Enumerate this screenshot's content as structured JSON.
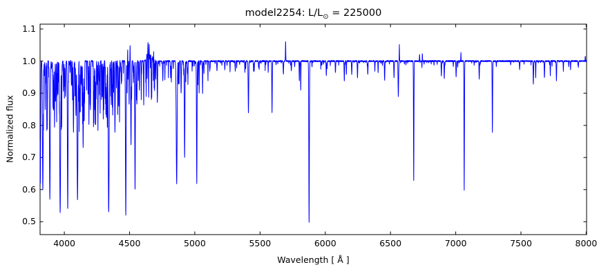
{
  "title": "model2254: L/L☉ = 225000",
  "title_parts": {
    "prefix": "model2254: L/L",
    "sub": "⊙",
    "suffix": " = 225000"
  },
  "chart_data": {
    "type": "line",
    "title": "model2254: L/L☉ = 225000",
    "xlabel": "Wavelength [ Å ]",
    "ylabel": "Normalized flux",
    "xlim": [
      3814,
      8003
    ],
    "ylim": [
      0.46,
      1.115
    ],
    "x_tick_values": [
      4000,
      4500,
      5000,
      5500,
      6000,
      6500,
      7000,
      7500,
      8000
    ],
    "x_tick_labels": [
      "4000",
      "4500",
      "5000",
      "5500",
      "6000",
      "6500",
      "7000",
      "7500",
      "8000"
    ],
    "y_tick_values": [
      0.5,
      0.6,
      0.7,
      0.8,
      0.9,
      1.0,
      1.1
    ],
    "y_tick_labels": [
      "0.5",
      "0.6",
      "0.7",
      "0.8",
      "0.9",
      "1.0",
      "1.1"
    ],
    "grid": false,
    "legend": false,
    "series_color": "#0000ff",
    "axis_color": "#000000",
    "background_color": "#ffffff",
    "continuum_flux": 1.0,
    "noise_amplitude": 0.0022,
    "random_seed": 7,
    "absorption_lines_format": [
      "wavelength_A",
      "min_flux",
      "width_A"
    ],
    "absorption_lines": [
      [
        3816,
        0.62,
        5
      ],
      [
        3835,
        0.6,
        7
      ],
      [
        3856,
        0.93,
        4
      ],
      [
        3868,
        0.9,
        4
      ],
      [
        3889,
        0.57,
        7
      ],
      [
        3920,
        0.93,
        4
      ],
      [
        3935,
        0.91,
        4
      ],
      [
        3968,
        0.53,
        8
      ],
      [
        3995,
        0.92,
        4
      ],
      [
        4009,
        0.89,
        4
      ],
      [
        4026,
        0.54,
        6
      ],
      [
        4070,
        0.78,
        5
      ],
      [
        4089,
        0.83,
        5
      ],
      [
        4101,
        0.57,
        8
      ],
      [
        4121,
        0.84,
        4
      ],
      [
        4144,
        0.73,
        5
      ],
      [
        4187,
        0.9,
        4
      ],
      [
        4200,
        0.85,
        4
      ],
      [
        4267,
        0.94,
        4
      ],
      [
        4291,
        0.89,
        4
      ],
      [
        4317,
        0.93,
        4
      ],
      [
        4340,
        0.53,
        8
      ],
      [
        4388,
        0.78,
        5
      ],
      [
        4415,
        0.91,
        4
      ],
      [
        4437,
        0.93,
        4
      ],
      [
        4471,
        0.52,
        6
      ],
      [
        4481,
        0.9,
        3
      ],
      [
        4511,
        0.74,
        5
      ],
      [
        4542,
        0.6,
        5
      ],
      [
        4553,
        0.88,
        4
      ],
      [
        4575,
        0.91,
        4
      ],
      [
        4713,
        0.87,
        4
      ],
      [
        4755,
        0.94,
        4
      ],
      [
        4815,
        0.95,
        4
      ],
      [
        4861,
        0.62,
        8
      ],
      [
        4895,
        0.9,
        4
      ],
      [
        4922,
        0.7,
        5
      ],
      [
        5015,
        0.62,
        5
      ],
      [
        5033,
        0.9,
        3
      ],
      [
        5060,
        0.9,
        3
      ],
      [
        5170,
        0.97,
        4
      ],
      [
        5230,
        0.975,
        4
      ],
      [
        5310,
        0.97,
        4
      ],
      [
        5411,
        0.84,
        5
      ],
      [
        5455,
        0.97,
        4
      ],
      [
        5592,
        0.84,
        4
      ],
      [
        5679,
        0.96,
        4
      ],
      [
        5740,
        0.97,
        4
      ],
      [
        5801,
        0.94,
        3
      ],
      [
        5812,
        0.91,
        3
      ],
      [
        5876,
        0.5,
        5
      ],
      [
        6008,
        0.955,
        4
      ],
      [
        6078,
        0.965,
        4
      ],
      [
        6146,
        0.94,
        4
      ],
      [
        6162,
        0.96,
        3
      ],
      [
        6203,
        0.96,
        4
      ],
      [
        6247,
        0.95,
        4
      ],
      [
        6326,
        0.96,
        4
      ],
      [
        6380,
        0.97,
        3
      ],
      [
        6405,
        0.965,
        3
      ],
      [
        6455,
        0.94,
        4
      ],
      [
        6527,
        0.95,
        4
      ],
      [
        6560,
        0.89,
        5
      ],
      [
        6678,
        0.63,
        4
      ],
      [
        6890,
        0.955,
        4
      ],
      [
        6912,
        0.945,
        4
      ],
      [
        7003,
        0.95,
        4
      ],
      [
        7065,
        0.6,
        4
      ],
      [
        7180,
        0.945,
        4
      ],
      [
        7281,
        0.78,
        4
      ],
      [
        7490,
        0.975,
        4
      ],
      [
        7595,
        0.93,
        4
      ],
      [
        7613,
        0.95,
        3
      ],
      [
        7680,
        0.95,
        4
      ],
      [
        7725,
        0.955,
        3
      ],
      [
        7772,
        0.94,
        4
      ],
      [
        7825,
        0.97,
        3
      ],
      [
        7880,
        0.975,
        3
      ],
      [
        7940,
        0.98,
        3
      ]
    ],
    "emission_lines_format": [
      "wavelength_A",
      "peak_flux",
      "width_A"
    ],
    "emission_lines": [
      [
        4486,
        1.04,
        2.5
      ],
      [
        4504,
        1.05,
        2.5
      ],
      [
        4634,
        1.035,
        3
      ],
      [
        4641,
        1.045,
        3
      ],
      [
        4650,
        1.035,
        3
      ],
      [
        4686,
        1.04,
        4
      ],
      [
        5696,
        1.06,
        3
      ],
      [
        6568,
        1.05,
        2.5
      ],
      [
        6723,
        1.02,
        3
      ],
      [
        6744,
        1.025,
        3
      ],
      [
        7040,
        1.025,
        2.5
      ],
      [
        7993,
        1.015,
        3
      ]
    ],
    "emission_band": {
      "from": 4608,
      "to": 4708,
      "amplitude": 0.018
    },
    "line_forest_format": [
      "from_A",
      "to_A",
      "count",
      "min_depth",
      "max_depth"
    ],
    "line_forest": [
      [
        3814,
        4000,
        60,
        0.01,
        0.22
      ],
      [
        4000,
        4450,
        120,
        0.01,
        0.22
      ],
      [
        4450,
        4700,
        55,
        0.008,
        0.15
      ],
      [
        4700,
        5120,
        50,
        0.005,
        0.08
      ],
      [
        5120,
        5600,
        30,
        0.003,
        0.035
      ],
      [
        5600,
        6000,
        22,
        0.003,
        0.025
      ],
      [
        6000,
        6500,
        25,
        0.003,
        0.025
      ],
      [
        6500,
        7000,
        18,
        0.003,
        0.025
      ],
      [
        7000,
        8003,
        30,
        0.002,
        0.02
      ]
    ]
  }
}
